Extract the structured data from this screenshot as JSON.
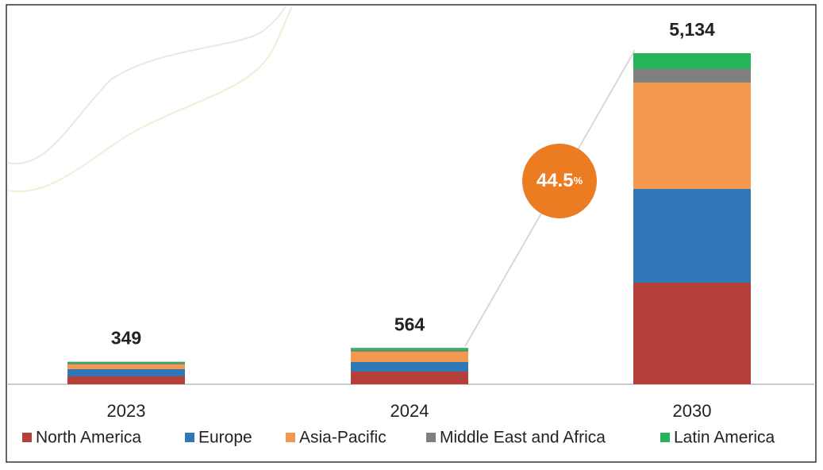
{
  "chart_data": {
    "type": "stacked_bar",
    "categories": [
      "2023",
      "2024",
      "2030"
    ],
    "series": [
      {
        "name": "North America",
        "color": "#b5403a",
        "values": [
          123,
          197,
          1576
        ]
      },
      {
        "name": "Europe",
        "color": "#2f77b6",
        "values": [
          111,
          148,
          1453
        ]
      },
      {
        "name": "Asia-Pacific",
        "color": "#f3994f",
        "values": [
          74,
          160,
          1650
        ]
      },
      {
        "name": "Middle East and Africa",
        "color": "#7f7f7f",
        "values": [
          18,
          25,
          209
        ]
      },
      {
        "name": "Latin America",
        "color": "#27b35a",
        "values": [
          23,
          34,
          246
        ]
      }
    ],
    "totals": [
      349,
      564,
      5134
    ],
    "total_labels": [
      "349",
      "564",
      "5,134"
    ],
    "annotation": {
      "text": "44.5",
      "unit": "%",
      "color": "#ec7c22"
    }
  }
}
